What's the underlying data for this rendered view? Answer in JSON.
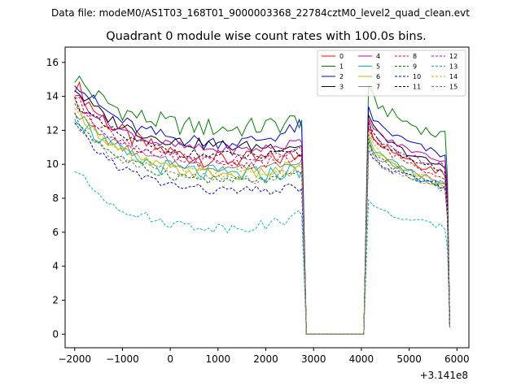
{
  "chart_data": {
    "type": "line",
    "suptitle": "Data file: modeM0/AS1T03_168T01_9000003368_22784cztM0_level2_quad_clean.evt",
    "title": "Quadrant 0 module wise count rates with 100.0s bins.",
    "xlabel": "",
    "ylabel": "",
    "x_offset_label": "+3.141e8",
    "xlim": [
      -2200,
      6250
    ],
    "ylim": [
      -0.8,
      16.9
    ],
    "xticks": [
      -2000,
      -1000,
      0,
      1000,
      2000,
      3000,
      4000,
      5000,
      6000
    ],
    "xtick_labels": [
      "−2000",
      "−1000",
      "0",
      "1000",
      "2000",
      "3000",
      "4000",
      "5000",
      "6000"
    ],
    "yticks": [
      0,
      2,
      4,
      6,
      8,
      10,
      12,
      14,
      16
    ],
    "ytick_labels": [
      "0",
      "2",
      "4",
      "6",
      "8",
      "10",
      "12",
      "14",
      "16"
    ],
    "legend_position": "upper-right",
    "series": [
      {
        "name": "0",
        "color": "#ff0000",
        "dash": "solid",
        "start": 14.8,
        "mid": 10.0,
        "preGap": 10.5,
        "post": 12.6,
        "end": 9.5,
        "amp": 0.55
      },
      {
        "name": "1",
        "color": "#008000",
        "dash": "solid",
        "start": 15.2,
        "mid": 11.9,
        "preGap": 12.6,
        "post": 14.6,
        "end": 11.6,
        "amp": 0.6
      },
      {
        "name": "2",
        "color": "#0000ff",
        "dash": "solid",
        "start": 15.0,
        "mid": 11.0,
        "preGap": 12.2,
        "post": 13.4,
        "end": 10.5,
        "amp": 0.4
      },
      {
        "name": "3",
        "color": "#000000",
        "dash": "solid",
        "start": 14.5,
        "mid": 10.9,
        "preGap": 11.1,
        "post": 12.9,
        "end": 9.8,
        "amp": 0.35
      },
      {
        "name": "4",
        "color": "#bf00bf",
        "dash": "solid",
        "start": 14.2,
        "mid": 10.6,
        "preGap": 11.3,
        "post": 12.7,
        "end": 10.2,
        "amp": 0.3
      },
      {
        "name": "5",
        "color": "#00bfbf",
        "dash": "solid",
        "start": 13.0,
        "mid": 9.2,
        "preGap": 9.6,
        "post": 11.6,
        "end": 8.7,
        "amp": 0.5
      },
      {
        "name": "6",
        "color": "#bfbf00",
        "dash": "solid",
        "start": 13.5,
        "mid": 9.1,
        "preGap": 10.0,
        "post": 11.8,
        "end": 8.6,
        "amp": 0.35
      },
      {
        "name": "7",
        "color": "#808080",
        "dash": "solid",
        "start": 13.2,
        "mid": 9.6,
        "preGap": 10.3,
        "post": 11.2,
        "end": 9.0,
        "amp": 0.3
      },
      {
        "name": "8",
        "color": "#ff0000",
        "dash": "dashed",
        "start": 14.0,
        "mid": 9.8,
        "preGap": 10.4,
        "post": 12.2,
        "end": 9.3,
        "amp": 0.35
      },
      {
        "name": "9",
        "color": "#008000",
        "dash": "dashed",
        "start": 12.8,
        "mid": 8.8,
        "preGap": 9.3,
        "post": 11.4,
        "end": 8.6,
        "amp": 0.3
      },
      {
        "name": "10",
        "color": "#0000ff",
        "dash": "dashed",
        "start": 12.3,
        "mid": 8.2,
        "preGap": 8.6,
        "post": 10.8,
        "end": 8.7,
        "amp": 0.3
      },
      {
        "name": "11",
        "color": "#000000",
        "dash": "dashed",
        "start": 13.8,
        "mid": 10.3,
        "preGap": 10.6,
        "post": 12.4,
        "end": 9.6,
        "amp": 0.3
      },
      {
        "name": "12",
        "color": "#bf00bf",
        "dash": "dashed",
        "start": 13.6,
        "mid": 10.0,
        "preGap": 10.8,
        "post": 12.1,
        "end": 9.9,
        "amp": 0.3
      },
      {
        "name": "13",
        "color": "#00bfbf",
        "dash": "dashed",
        "start": 9.7,
        "mid": 6.0,
        "preGap": 7.0,
        "post": 7.9,
        "end": 6.3,
        "amp": 0.3
      },
      {
        "name": "14",
        "color": "#bfbf00",
        "dash": "dashed",
        "start": 13.3,
        "mid": 9.3,
        "preGap": 9.7,
        "post": 11.9,
        "end": 8.8,
        "amp": 0.3
      },
      {
        "name": "15",
        "color": "#808080",
        "dash": "dashed",
        "start": 12.6,
        "mid": 8.9,
        "preGap": 9.5,
        "post": 11.0,
        "end": 8.5,
        "amp": 0.35
      }
    ]
  }
}
